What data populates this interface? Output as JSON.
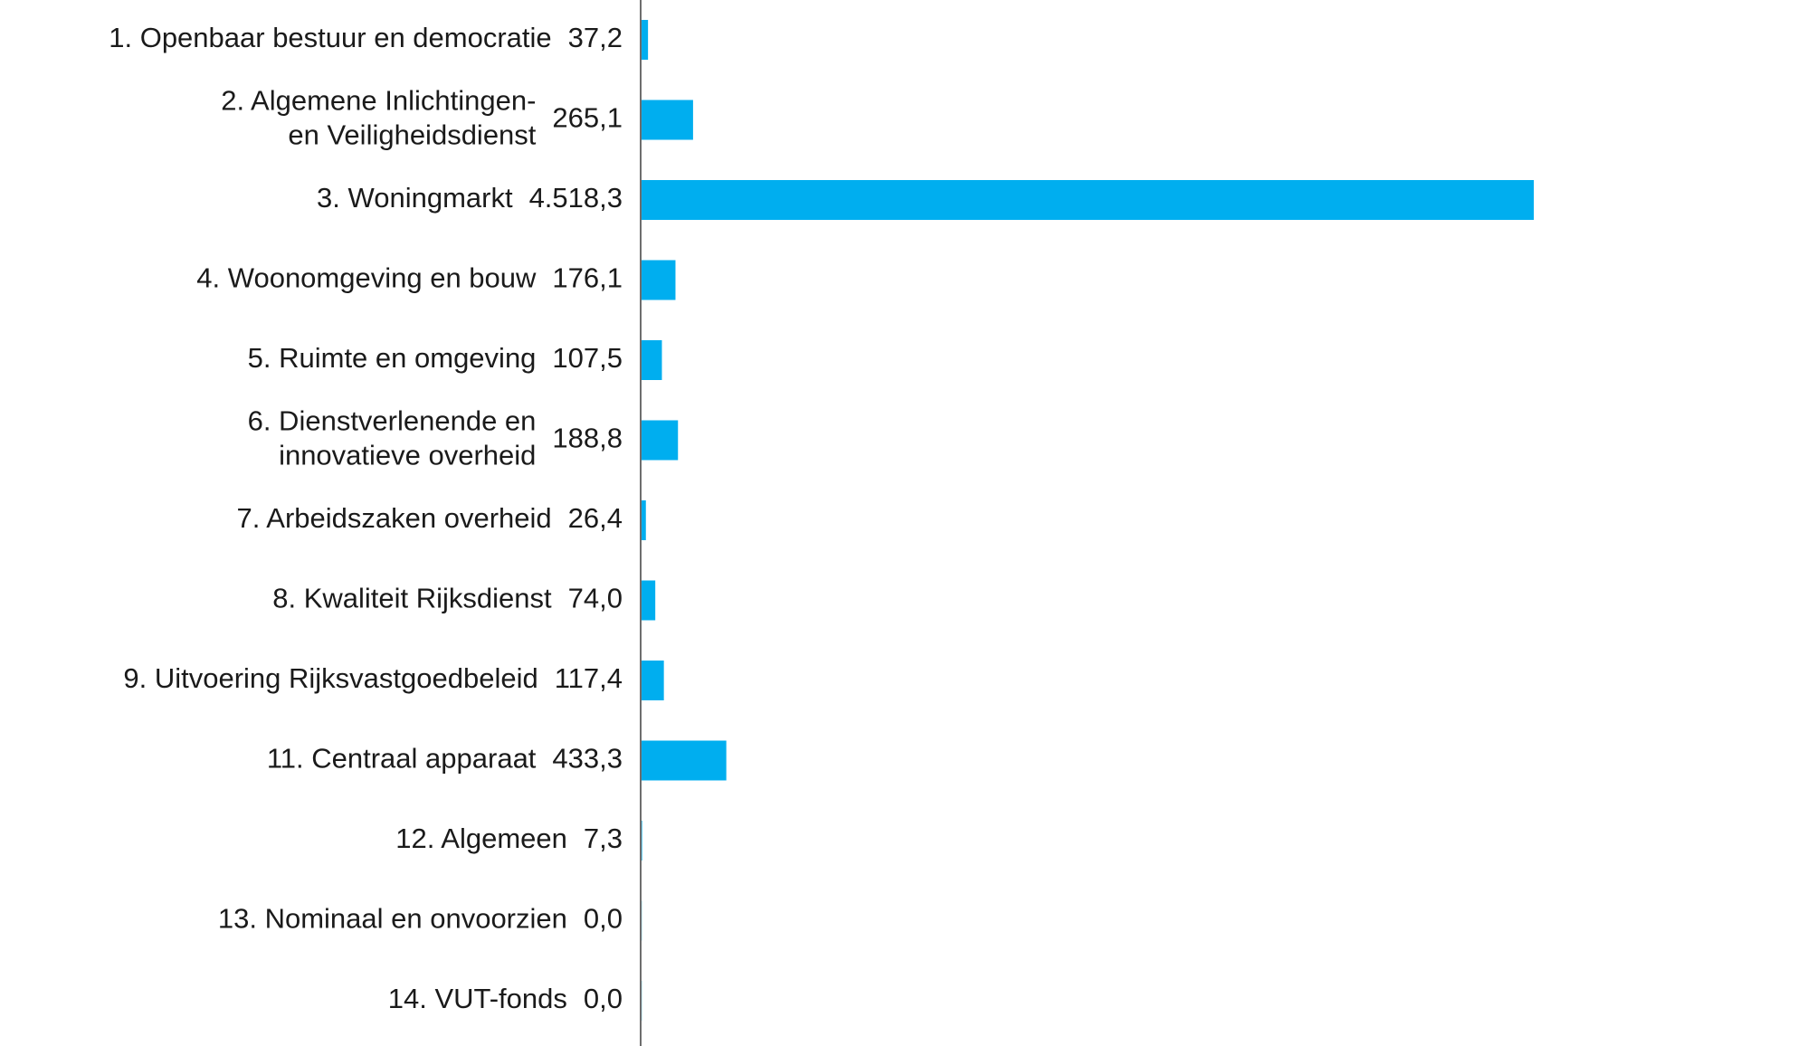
{
  "chart_data": {
    "type": "bar",
    "orientation": "horizontal",
    "title": "",
    "xlabel": "",
    "ylabel": "",
    "legend": "none",
    "grid": false,
    "xlim": [
      0,
      4518.3
    ],
    "categories": [
      [
        "1. Openbaar bestuur en democratie"
      ],
      [
        "2. Algemene Inlichtingen-",
        "en Veiligheidsdienst"
      ],
      [
        "3.  Woningmarkt"
      ],
      [
        "4. Woonomgeving en bouw"
      ],
      [
        "5. Ruimte en omgeving"
      ],
      [
        "6. Dienstverlenende en",
        "innovatieve overheid"
      ],
      [
        "7. Arbeidszaken overheid"
      ],
      [
        "8. Kwaliteit Rijksdienst"
      ],
      [
        "9. Uitvoering Rijksvastgoedbeleid"
      ],
      [
        "11. Centraal apparaat"
      ],
      [
        "12. Algemeen"
      ],
      [
        "13. Nominaal en onvoorzien"
      ],
      [
        "14. VUT-fonds"
      ]
    ],
    "values": [
      37.2,
      265.1,
      4518.3,
      176.1,
      107.5,
      188.8,
      26.4,
      74.0,
      117.4,
      433.3,
      7.3,
      0.0,
      0.0
    ],
    "value_labels": [
      "37,2",
      "265,1",
      "4.518,3",
      "176,1",
      "107,5",
      "188,8",
      "26,4",
      "74,0",
      "117,4",
      "433,3",
      "7,3",
      "0,0",
      "0,0"
    ],
    "colors": {
      "bar": "#00aeef",
      "axis": "#6e6e6e",
      "text": "#1a1a1a"
    }
  }
}
